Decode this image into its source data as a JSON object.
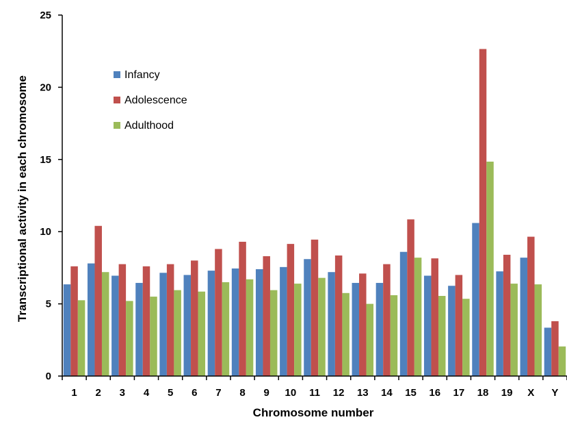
{
  "chart_data": {
    "type": "bar",
    "title": "",
    "xlabel": "Chromosome number",
    "ylabel": "Transcriptional activity in each chromosome",
    "ylim": [
      0,
      25
    ],
    "yticks": [
      0,
      5,
      10,
      15,
      20,
      25
    ],
    "grid": false,
    "legend_position": "top-left",
    "categories": [
      "1",
      "2",
      "3",
      "4",
      "5",
      "6",
      "7",
      "8",
      "9",
      "10",
      "11",
      "12",
      "13",
      "14",
      "15",
      "16",
      "17",
      "18",
      "19",
      "X",
      "Y"
    ],
    "series": [
      {
        "name": "Infancy",
        "color": "#4f81bd",
        "values": [
          6.35,
          7.8,
          6.95,
          6.45,
          7.15,
          7.0,
          7.3,
          7.45,
          7.4,
          7.55,
          8.1,
          7.2,
          6.45,
          6.45,
          8.6,
          6.95,
          6.25,
          10.6,
          7.25,
          8.2,
          3.35
        ]
      },
      {
        "name": "Adolescence",
        "color": "#c0504d",
        "values": [
          7.6,
          10.4,
          7.75,
          7.6,
          7.75,
          8.0,
          8.8,
          9.3,
          8.3,
          9.15,
          9.45,
          8.35,
          7.1,
          7.75,
          10.85,
          8.15,
          7.0,
          22.65,
          8.4,
          9.65,
          3.8
        ]
      },
      {
        "name": "Adulthood",
        "color": "#9bbb59",
        "values": [
          5.25,
          7.2,
          5.2,
          5.5,
          5.95,
          5.85,
          6.5,
          6.7,
          5.95,
          6.4,
          6.8,
          5.75,
          5.0,
          5.6,
          8.2,
          5.55,
          5.35,
          14.85,
          6.4,
          6.35,
          2.05
        ]
      }
    ]
  }
}
